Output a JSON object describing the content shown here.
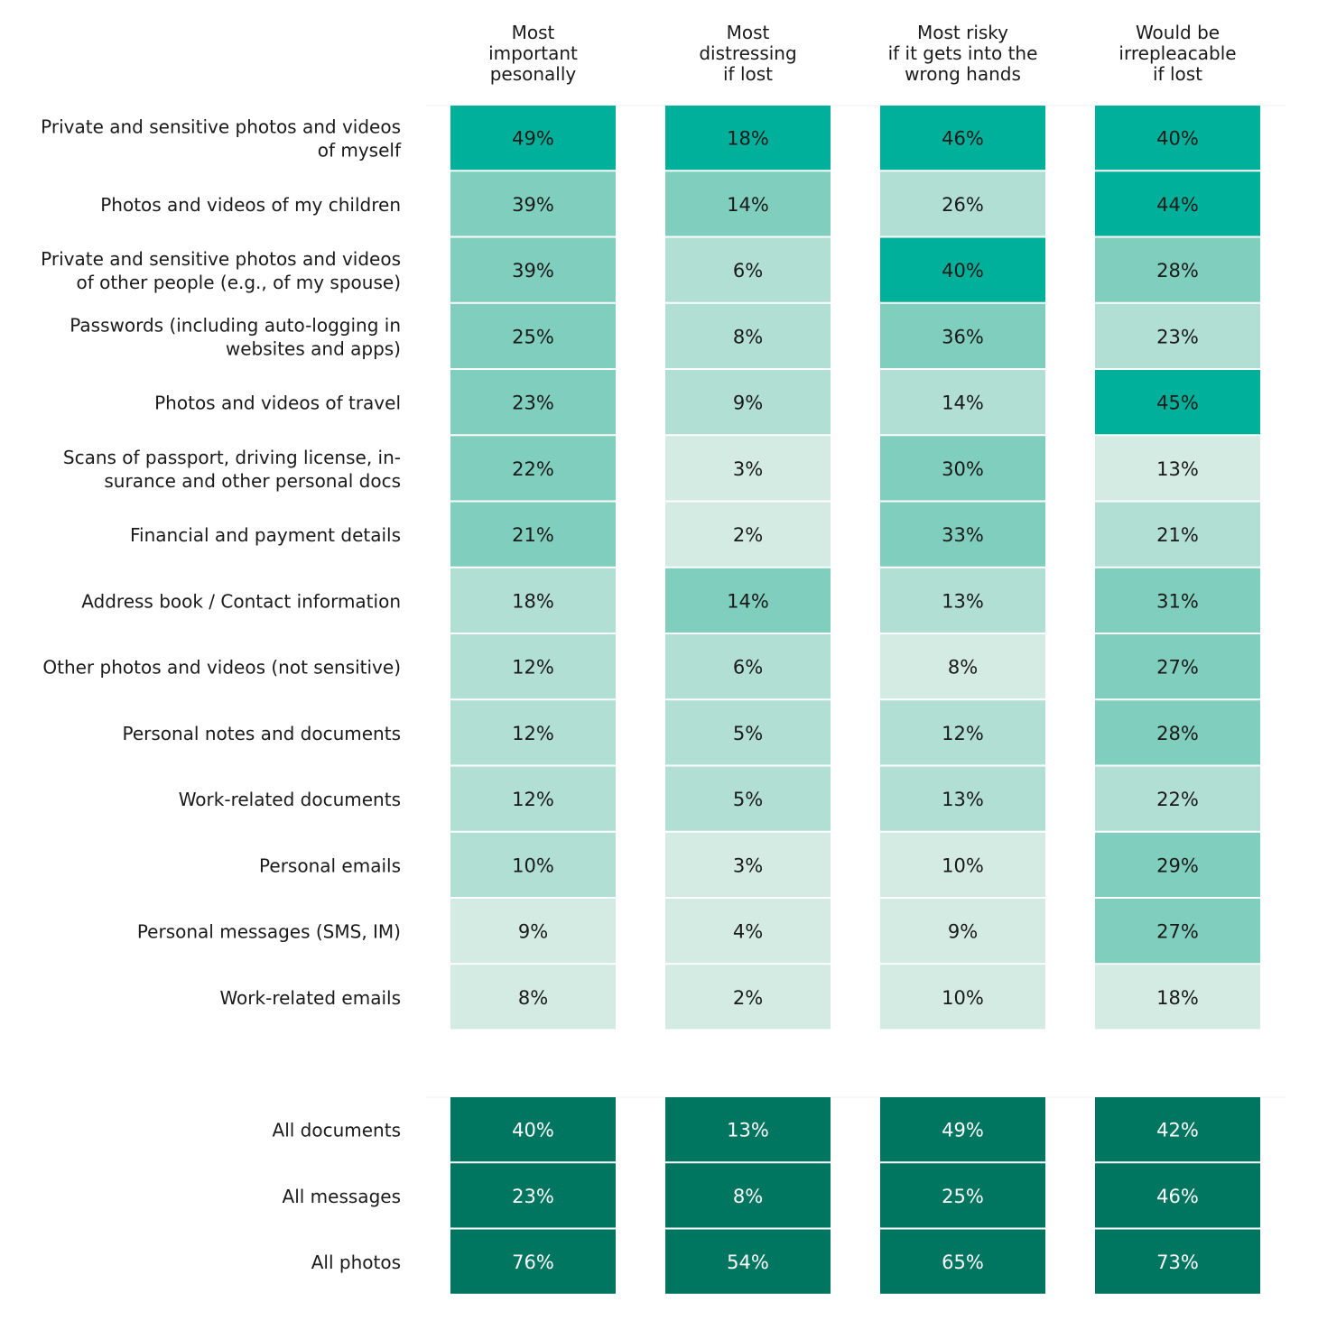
{
  "chart_data": {
    "type": "heatmap",
    "columns": [
      [
        "Most",
        "important",
        "pesonally"
      ],
      [
        "Most",
        "distressing",
        "if lost"
      ],
      [
        "Most risky",
        "if it gets into the",
        "wrong hands"
      ],
      [
        "Would be",
        "irrepleacable",
        "if lost"
      ]
    ],
    "unit": "%",
    "groups": [
      {
        "rows": [
          {
            "label": [
              "Private and sensitive photos and videos",
              "of myself"
            ],
            "values": [
              49,
              18,
              46,
              40
            ],
            "levels": [
              3,
              3,
              3,
              3
            ]
          },
          {
            "label": [
              "Photos and videos of my children"
            ],
            "values": [
              39,
              14,
              26,
              44
            ],
            "levels": [
              2,
              2,
              1,
              3
            ]
          },
          {
            "label": [
              "Private and sensitive photos and videos",
              "of other people (e.g., of my spouse)"
            ],
            "values": [
              39,
              6,
              40,
              28
            ],
            "levels": [
              2,
              1,
              3,
              2
            ]
          },
          {
            "label": [
              "Passwords (including auto-logging in",
              "websites and apps)"
            ],
            "values": [
              25,
              8,
              36,
              23
            ],
            "levels": [
              2,
              1,
              2,
              1
            ]
          },
          {
            "label": [
              "Photos and videos of travel"
            ],
            "values": [
              23,
              9,
              14,
              45
            ],
            "levels": [
              2,
              1,
              1,
              3
            ]
          },
          {
            "label": [
              "Scans of passport, driving license, in-",
              "surance and other personal docs"
            ],
            "values": [
              22,
              3,
              30,
              13
            ],
            "levels": [
              2,
              0,
              2,
              0
            ]
          },
          {
            "label": [
              "Financial and payment details"
            ],
            "values": [
              21,
              2,
              33,
              21
            ],
            "levels": [
              2,
              0,
              2,
              1
            ]
          },
          {
            "label": [
              "Address book / Contact information"
            ],
            "values": [
              18,
              14,
              13,
              31
            ],
            "levels": [
              1,
              2,
              1,
              2
            ]
          },
          {
            "label": [
              "Other photos and videos (not sensitive)"
            ],
            "values": [
              12,
              6,
              8,
              27
            ],
            "levels": [
              1,
              1,
              0,
              2
            ]
          },
          {
            "label": [
              "Personal notes and documents"
            ],
            "values": [
              12,
              5,
              12,
              28
            ],
            "levels": [
              1,
              1,
              1,
              2
            ]
          },
          {
            "label": [
              "Work-related documents"
            ],
            "values": [
              12,
              5,
              13,
              22
            ],
            "levels": [
              1,
              1,
              1,
              1
            ]
          },
          {
            "label": [
              "Personal emails"
            ],
            "values": [
              10,
              3,
              10,
              29
            ],
            "levels": [
              1,
              0,
              0,
              2
            ]
          },
          {
            "label": [
              "Personal messages (SMS, IM)"
            ],
            "values": [
              9,
              4,
              9,
              27
            ],
            "levels": [
              0,
              0,
              0,
              2
            ]
          },
          {
            "label": [
              "Work-related emails"
            ],
            "values": [
              8,
              2,
              10,
              18
            ],
            "levels": [
              0,
              0,
              0,
              0
            ]
          }
        ]
      },
      {
        "rows": [
          {
            "label": [
              "All documents"
            ],
            "values": [
              40,
              13,
              49,
              42
            ],
            "levels": [
              4,
              4,
              4,
              4
            ]
          },
          {
            "label": [
              "All messages"
            ],
            "values": [
              23,
              8,
              25,
              46
            ],
            "levels": [
              4,
              4,
              4,
              4
            ]
          },
          {
            "label": [
              "All photos"
            ],
            "values": [
              76,
              54,
              65,
              73
            ],
            "levels": [
              4,
              4,
              4,
              4
            ]
          }
        ]
      }
    ],
    "palette": [
      "#d4ebe4",
      "#b2dfd4",
      "#80cebe",
      "#00b09b",
      "#007560"
    ]
  }
}
